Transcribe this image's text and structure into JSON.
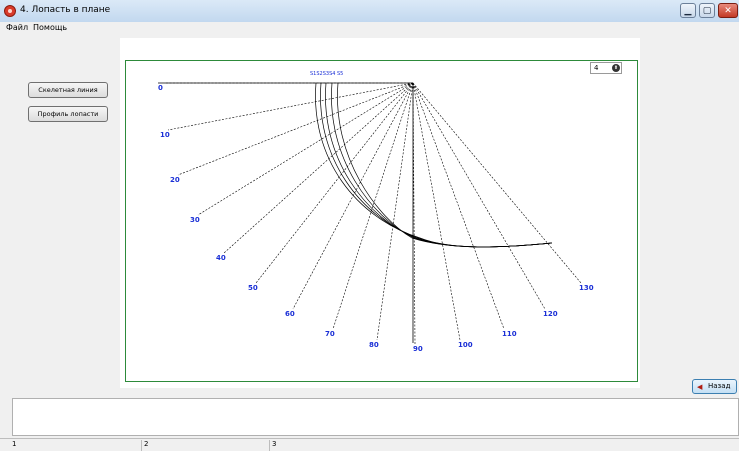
{
  "window": {
    "title": "4. Лопасть в плане"
  },
  "menu": [
    {
      "label": "Файл"
    },
    {
      "label": "Помощь"
    }
  ],
  "buttons": {
    "skeleton": "Скелетная линия",
    "profile": "Профиль лопасти",
    "back": "Назад"
  },
  "spinner": {
    "value": "4"
  },
  "plot": {
    "angle_labels": [
      "0",
      "10",
      "20",
      "30",
      "40",
      "50",
      "60",
      "70",
      "80",
      "90",
      "100",
      "110",
      "120",
      "130"
    ],
    "section_labels": "S1S2S3S4 S5",
    "line_color": "#000000",
    "label_color": "#1a2fd6",
    "frame_color": "#2d8a3a"
  },
  "statusbar": [
    "1",
    "2",
    "3"
  ]
}
